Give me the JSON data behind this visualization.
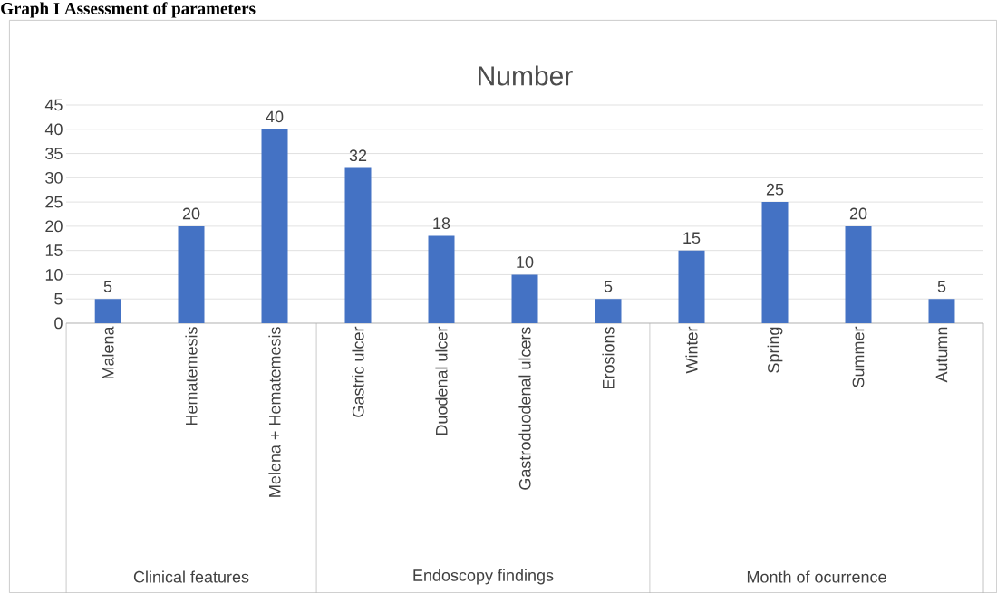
{
  "chart_data": {
    "type": "bar",
    "title": "Number",
    "categories": [
      "Malena",
      "Hematemesis",
      "Melena + Hematemesis",
      "Gastric ulcer",
      "Duodenal ulcer",
      "Gastroduodenal ulcers",
      "Erosions",
      "Winter",
      "Spring",
      "Summer",
      "Autumn"
    ],
    "values": [
      5,
      20,
      40,
      32,
      18,
      10,
      5,
      15,
      25,
      20,
      5
    ],
    "color": "#4472c4",
    "ylim": [
      0,
      45
    ],
    "yticks": [
      0,
      5,
      10,
      15,
      20,
      25,
      30,
      35,
      40,
      45
    ],
    "grid": "y",
    "data_labels": true,
    "annotations": [
      "Clinical features",
      "Endoscopy findings",
      "Month of ocurrence",
      "Graph I Assessment of parameters"
    ]
  }
}
